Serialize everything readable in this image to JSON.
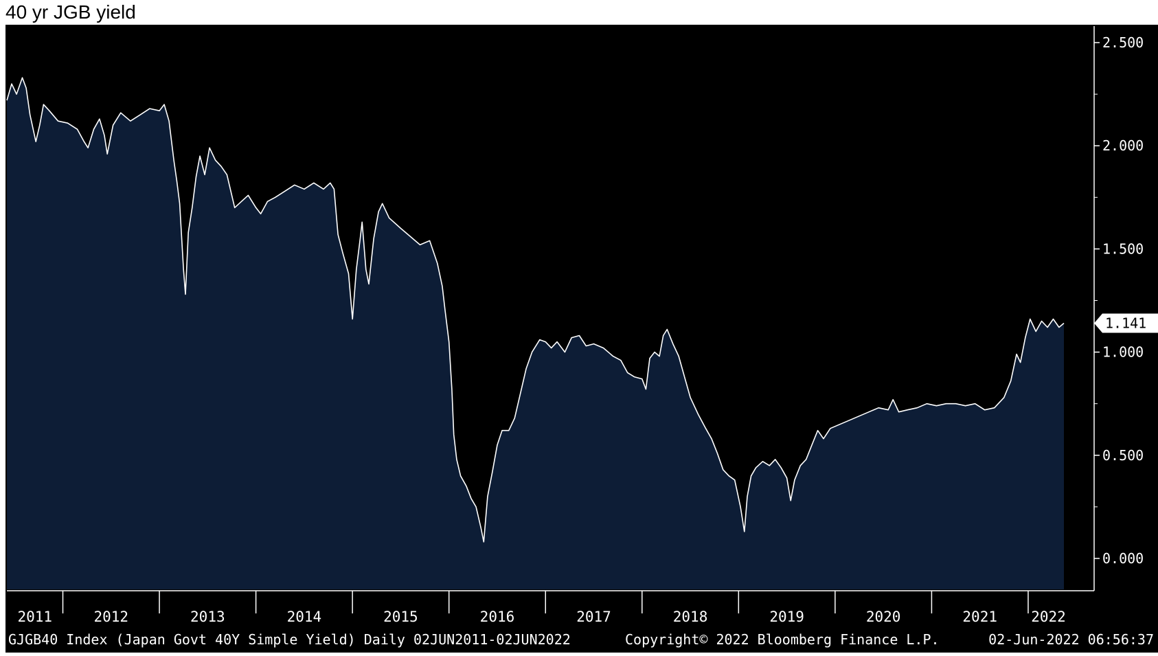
{
  "title": "40 yr JGB yield",
  "chart_data": {
    "type": "area",
    "y_axis_position": "right",
    "ylim": [
      -0.15,
      2.58
    ],
    "yticks": [
      0.0,
      0.5,
      1.0,
      1.5,
      2.0,
      2.5
    ],
    "ytick_labels": [
      "0.000",
      "0.500",
      "1.000",
      "1.500",
      "2.000",
      "2.500"
    ],
    "xlim": [
      2011.42,
      2022.42
    ],
    "year_labels": [
      "2011",
      "2012",
      "2013",
      "2014",
      "2015",
      "2016",
      "2017",
      "2018",
      "2019",
      "2020",
      "2021",
      "2022"
    ],
    "last_value_label": "1.141",
    "series": [
      {
        "values": [
          [
            2011.42,
            2.22
          ],
          [
            2011.47,
            2.3
          ],
          [
            2011.52,
            2.25
          ],
          [
            2011.58,
            2.33
          ],
          [
            2011.62,
            2.28
          ],
          [
            2011.66,
            2.15
          ],
          [
            2011.72,
            2.02
          ],
          [
            2011.76,
            2.1
          ],
          [
            2011.8,
            2.2
          ],
          [
            2011.86,
            2.17
          ],
          [
            2011.95,
            2.12
          ],
          [
            2012.05,
            2.11
          ],
          [
            2012.15,
            2.08
          ],
          [
            2012.22,
            2.02
          ],
          [
            2012.26,
            1.99
          ],
          [
            2012.32,
            2.08
          ],
          [
            2012.38,
            2.13
          ],
          [
            2012.43,
            2.05
          ],
          [
            2012.46,
            1.96
          ],
          [
            2012.52,
            2.1
          ],
          [
            2012.6,
            2.16
          ],
          [
            2012.7,
            2.12
          ],
          [
            2012.8,
            2.15
          ],
          [
            2012.9,
            2.18
          ],
          [
            2013.0,
            2.17
          ],
          [
            2013.05,
            2.2
          ],
          [
            2013.1,
            2.12
          ],
          [
            2013.15,
            1.93
          ],
          [
            2013.18,
            1.83
          ],
          [
            2013.21,
            1.72
          ],
          [
            2013.25,
            1.4
          ],
          [
            2013.27,
            1.28
          ],
          [
            2013.3,
            1.58
          ],
          [
            2013.34,
            1.7
          ],
          [
            2013.38,
            1.85
          ],
          [
            2013.42,
            1.95
          ],
          [
            2013.47,
            1.86
          ],
          [
            2013.52,
            1.99
          ],
          [
            2013.58,
            1.93
          ],
          [
            2013.64,
            1.9
          ],
          [
            2013.7,
            1.86
          ],
          [
            2013.78,
            1.7
          ],
          [
            2013.85,
            1.73
          ],
          [
            2013.92,
            1.76
          ],
          [
            2014.0,
            1.7
          ],
          [
            2014.05,
            1.67
          ],
          [
            2014.12,
            1.73
          ],
          [
            2014.2,
            1.75
          ],
          [
            2014.3,
            1.78
          ],
          [
            2014.4,
            1.81
          ],
          [
            2014.5,
            1.79
          ],
          [
            2014.6,
            1.82
          ],
          [
            2014.7,
            1.79
          ],
          [
            2014.77,
            1.82
          ],
          [
            2014.81,
            1.79
          ],
          [
            2014.85,
            1.57
          ],
          [
            2014.9,
            1.48
          ],
          [
            2014.96,
            1.38
          ],
          [
            2015.0,
            1.16
          ],
          [
            2015.04,
            1.4
          ],
          [
            2015.08,
            1.55
          ],
          [
            2015.1,
            1.63
          ],
          [
            2015.14,
            1.4
          ],
          [
            2015.17,
            1.33
          ],
          [
            2015.22,
            1.55
          ],
          [
            2015.27,
            1.68
          ],
          [
            2015.31,
            1.72
          ],
          [
            2015.38,
            1.65
          ],
          [
            2015.5,
            1.6
          ],
          [
            2015.6,
            1.56
          ],
          [
            2015.7,
            1.52
          ],
          [
            2015.8,
            1.54
          ],
          [
            2015.88,
            1.43
          ],
          [
            2015.93,
            1.32
          ],
          [
            2015.96,
            1.2
          ],
          [
            2016.0,
            1.05
          ],
          [
            2016.03,
            0.82
          ],
          [
            2016.05,
            0.6
          ],
          [
            2016.08,
            0.48
          ],
          [
            2016.12,
            0.4
          ],
          [
            2016.18,
            0.35
          ],
          [
            2016.23,
            0.29
          ],
          [
            2016.28,
            0.25
          ],
          [
            2016.33,
            0.15
          ],
          [
            2016.36,
            0.08
          ],
          [
            2016.4,
            0.3
          ],
          [
            2016.45,
            0.42
          ],
          [
            2016.5,
            0.55
          ],
          [
            2016.55,
            0.62
          ],
          [
            2016.62,
            0.62
          ],
          [
            2016.68,
            0.68
          ],
          [
            2016.74,
            0.8
          ],
          [
            2016.8,
            0.92
          ],
          [
            2016.86,
            1.0
          ],
          [
            2016.94,
            1.06
          ],
          [
            2017.0,
            1.05
          ],
          [
            2017.06,
            1.02
          ],
          [
            2017.12,
            1.05
          ],
          [
            2017.2,
            1.0
          ],
          [
            2017.27,
            1.07
          ],
          [
            2017.35,
            1.08
          ],
          [
            2017.42,
            1.03
          ],
          [
            2017.5,
            1.04
          ],
          [
            2017.6,
            1.02
          ],
          [
            2017.7,
            0.98
          ],
          [
            2017.78,
            0.96
          ],
          [
            2017.85,
            0.9
          ],
          [
            2017.92,
            0.88
          ],
          [
            2018.0,
            0.87
          ],
          [
            2018.04,
            0.82
          ],
          [
            2018.08,
            0.97
          ],
          [
            2018.13,
            1.0
          ],
          [
            2018.18,
            0.98
          ],
          [
            2018.22,
            1.08
          ],
          [
            2018.26,
            1.11
          ],
          [
            2018.32,
            1.04
          ],
          [
            2018.38,
            0.98
          ],
          [
            2018.44,
            0.88
          ],
          [
            2018.5,
            0.78
          ],
          [
            2018.58,
            0.7
          ],
          [
            2018.66,
            0.63
          ],
          [
            2018.72,
            0.58
          ],
          [
            2018.78,
            0.51
          ],
          [
            2018.84,
            0.43
          ],
          [
            2018.9,
            0.4
          ],
          [
            2018.96,
            0.38
          ],
          [
            2019.02,
            0.25
          ],
          [
            2019.06,
            0.13
          ],
          [
            2019.09,
            0.3
          ],
          [
            2019.13,
            0.4
          ],
          [
            2019.18,
            0.44
          ],
          [
            2019.25,
            0.47
          ],
          [
            2019.32,
            0.45
          ],
          [
            2019.38,
            0.48
          ],
          [
            2019.44,
            0.44
          ],
          [
            2019.5,
            0.39
          ],
          [
            2019.54,
            0.28
          ],
          [
            2019.58,
            0.38
          ],
          [
            2019.64,
            0.45
          ],
          [
            2019.7,
            0.48
          ],
          [
            2019.76,
            0.55
          ],
          [
            2019.82,
            0.62
          ],
          [
            2019.88,
            0.58
          ],
          [
            2019.95,
            0.63
          ],
          [
            2020.05,
            0.65
          ],
          [
            2020.15,
            0.67
          ],
          [
            2020.25,
            0.69
          ],
          [
            2020.35,
            0.71
          ],
          [
            2020.45,
            0.73
          ],
          [
            2020.55,
            0.72
          ],
          [
            2020.6,
            0.77
          ],
          [
            2020.66,
            0.71
          ],
          [
            2020.75,
            0.72
          ],
          [
            2020.85,
            0.73
          ],
          [
            2020.95,
            0.75
          ],
          [
            2021.05,
            0.74
          ],
          [
            2021.15,
            0.75
          ],
          [
            2021.25,
            0.75
          ],
          [
            2021.35,
            0.74
          ],
          [
            2021.45,
            0.75
          ],
          [
            2021.55,
            0.72
          ],
          [
            2021.65,
            0.73
          ],
          [
            2021.75,
            0.78
          ],
          [
            2021.82,
            0.86
          ],
          [
            2021.88,
            0.99
          ],
          [
            2021.92,
            0.95
          ],
          [
            2021.97,
            1.07
          ],
          [
            2022.02,
            1.16
          ],
          [
            2022.08,
            1.1
          ],
          [
            2022.14,
            1.15
          ],
          [
            2022.2,
            1.12
          ],
          [
            2022.26,
            1.16
          ],
          [
            2022.32,
            1.12
          ],
          [
            2022.37,
            1.14
          ]
        ]
      }
    ]
  },
  "footer": {
    "left": "GJGB40 Index (Japan Govt 40Y Simple Yield)  Daily 02JUN2011-02JUN2022",
    "center": "Copyright© 2022 Bloomberg Finance L.P.",
    "right": "02-Jun-2022 06:56:37"
  },
  "colors": {
    "background": "#000000",
    "fill": "#0d1d36",
    "line": "#ffffff",
    "text": "#ffffff"
  }
}
